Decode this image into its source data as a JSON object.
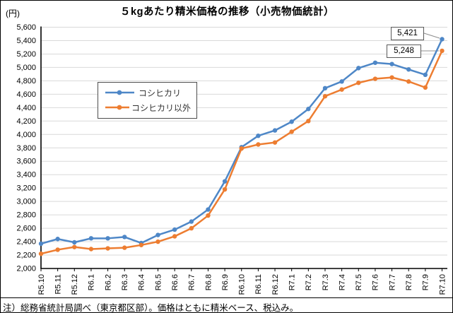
{
  "title": "５kgあたり精米価格の推移（小売物価統計）",
  "unit_label": "(円)",
  "note": "注）総務省統計局調べ（東京都区部）。価格はともに精米ベース、税込み。",
  "colors": {
    "koshihikari": "#4E87C7",
    "other": "#ED7D31",
    "grid": "#D9D9D9",
    "axis": "#000000",
    "leader_line": "#8C8C8C"
  },
  "chart_data": {
    "type": "line",
    "title": "５kgあたり精米価格の推移（小売物価統計）",
    "ylabel": "(円)",
    "ylim": [
      2000,
      5600
    ],
    "ytick_step": 200,
    "grid": "on",
    "legend_position": "upper-left-inside",
    "yticks": [
      "2,000",
      "2,200",
      "2,400",
      "2,600",
      "2,800",
      "3,000",
      "3,200",
      "3,400",
      "3,600",
      "3,800",
      "4,000",
      "4,200",
      "4,400",
      "4,600",
      "4,800",
      "5,000",
      "5,200",
      "5,400",
      "5,600"
    ],
    "categories": [
      "R5.10",
      "R5.11",
      "R5.12",
      "R6.1",
      "R6.2",
      "R6.3",
      "R6.4",
      "R6.5",
      "R6.6",
      "R6.7",
      "R6.8",
      "R6.9",
      "R6.10",
      "R6.11",
      "R6.12",
      "R7.1",
      "R7.2",
      "R7.3",
      "R7.4",
      "R7.5",
      "R7.6",
      "R7.7",
      "R7.8",
      "R7.9",
      "R7.10"
    ],
    "series": [
      {
        "name": "コシヒカリ",
        "color": "#4E87C7",
        "values": [
          2370,
          2440,
          2390,
          2450,
          2450,
          2470,
          2380,
          2500,
          2580,
          2700,
          2880,
          3300,
          3810,
          3980,
          4060,
          4190,
          4380,
          4690,
          4790,
          4990,
          5070,
          5050,
          4970,
          4890,
          5421
        ]
      },
      {
        "name": "コシヒカリ以外",
        "color": "#ED7D31",
        "values": [
          2220,
          2280,
          2320,
          2290,
          2300,
          2310,
          2350,
          2400,
          2480,
          2600,
          2790,
          3180,
          3790,
          3850,
          3880,
          4040,
          4200,
          4570,
          4670,
          4770,
          4830,
          4850,
          4790,
          4700,
          5248
        ]
      }
    ],
    "annotations": [
      {
        "label": "5,421",
        "series": "コシヒカリ",
        "x": "R7.10",
        "value": 5421
      },
      {
        "label": "5,248",
        "series": "コシヒカリ以外",
        "x": "R7.10",
        "value": 5248
      }
    ]
  }
}
